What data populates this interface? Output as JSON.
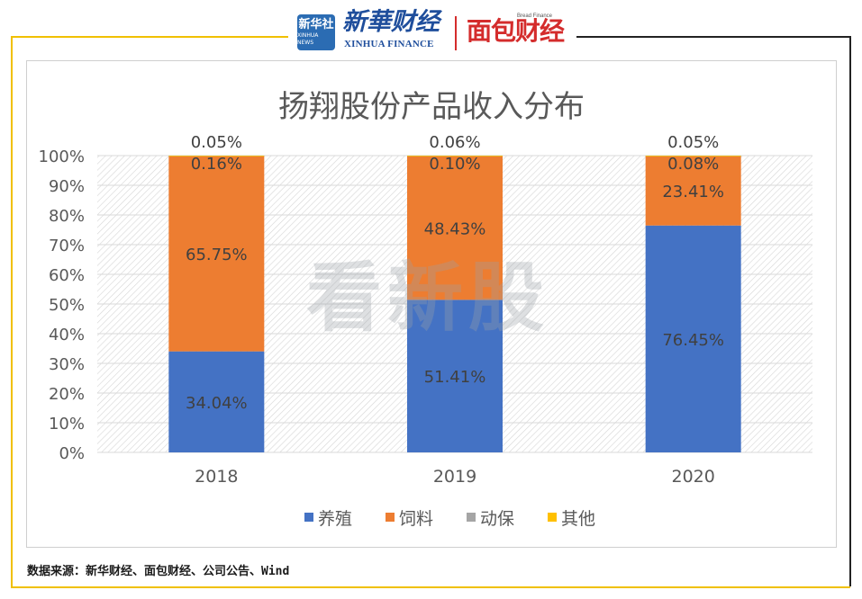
{
  "header": {
    "xinhua_badge_cn": "新华社",
    "xinhua_badge_en": "XINHUA NEWS",
    "xinhua_finance_cn": "新華财经",
    "xinhua_finance_en": "XINHUA FINANCE",
    "bread_finance_en": "Bread Finance",
    "bread_finance_cn": "面包财经"
  },
  "watermark": "看新股",
  "source_note": "数据来源：新华财经、面包财经、公司公告、Wind",
  "colors": {
    "breeding": "#4472c4",
    "feed": "#ed7d31",
    "animal_health": "#a5a5a5",
    "other": "#ffc000",
    "frame_accent": "#f0c000"
  },
  "chart_data": {
    "type": "bar",
    "stacked": true,
    "title": "扬翔股份产品收入分布",
    "categories": [
      "2018",
      "2019",
      "2020"
    ],
    "series": [
      {
        "name": "养殖",
        "values": [
          34.04,
          51.41,
          76.45
        ],
        "labels": [
          "34.04%",
          "51.41%",
          "76.45%"
        ]
      },
      {
        "name": "饲料",
        "values": [
          65.75,
          48.43,
          23.41
        ],
        "labels": [
          "65.75%",
          "48.43%",
          "23.41%"
        ]
      },
      {
        "name": "动保",
        "values": [
          0.16,
          0.1,
          0.08
        ],
        "labels": [
          "0.16%",
          "0.10%",
          "0.08%"
        ]
      },
      {
        "name": "其他",
        "values": [
          0.05,
          0.06,
          0.05
        ],
        "labels": [
          "0.05%",
          "0.06%",
          "0.05%"
        ]
      }
    ],
    "y_ticks": [
      "0%",
      "10%",
      "20%",
      "30%",
      "40%",
      "50%",
      "60%",
      "70%",
      "80%",
      "90%",
      "100%"
    ],
    "ylim": [
      0,
      100
    ],
    "grid": true,
    "legend_position": "bottom"
  }
}
